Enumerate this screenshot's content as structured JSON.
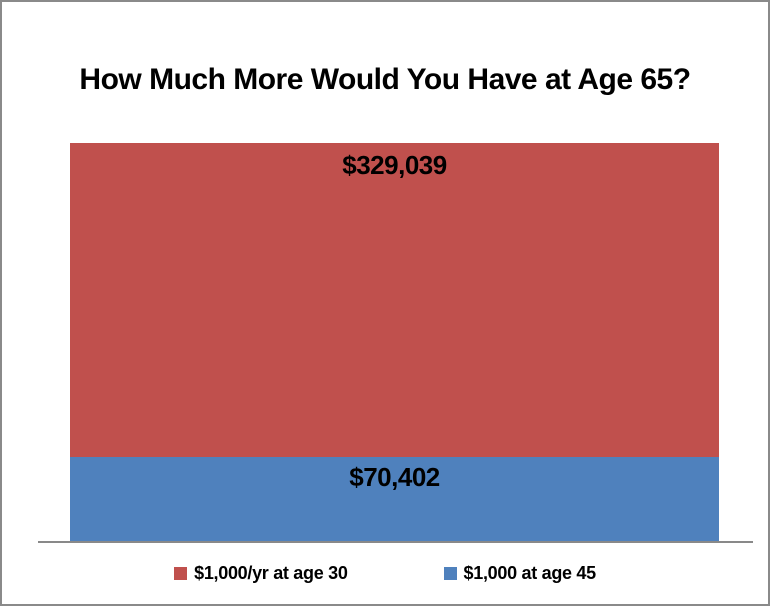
{
  "window": {
    "background": "#ffffff",
    "border_color": "#8a8a8a",
    "axis_line_color": "#898989"
  },
  "chart_data": {
    "type": "bar",
    "stacked": true,
    "orientation": "vertical",
    "title": "How Much More Would You Have at Age 65?",
    "categories": [
      ""
    ],
    "xlabel": "",
    "ylabel": "",
    "grid": false,
    "legend_position": "bottom",
    "series": [
      {
        "name": "$1,000/yr at age 30",
        "values": [
          329039
        ],
        "data_label": "$329,039",
        "color": "#C0504D",
        "stack_position": "top"
      },
      {
        "name": "$1,000 at age 45",
        "values": [
          70402
        ],
        "data_label": "$70,402",
        "color": "#4F81BD",
        "stack_position": "bottom"
      }
    ],
    "data_label_color": "#000000",
    "title_color": "#000000"
  }
}
